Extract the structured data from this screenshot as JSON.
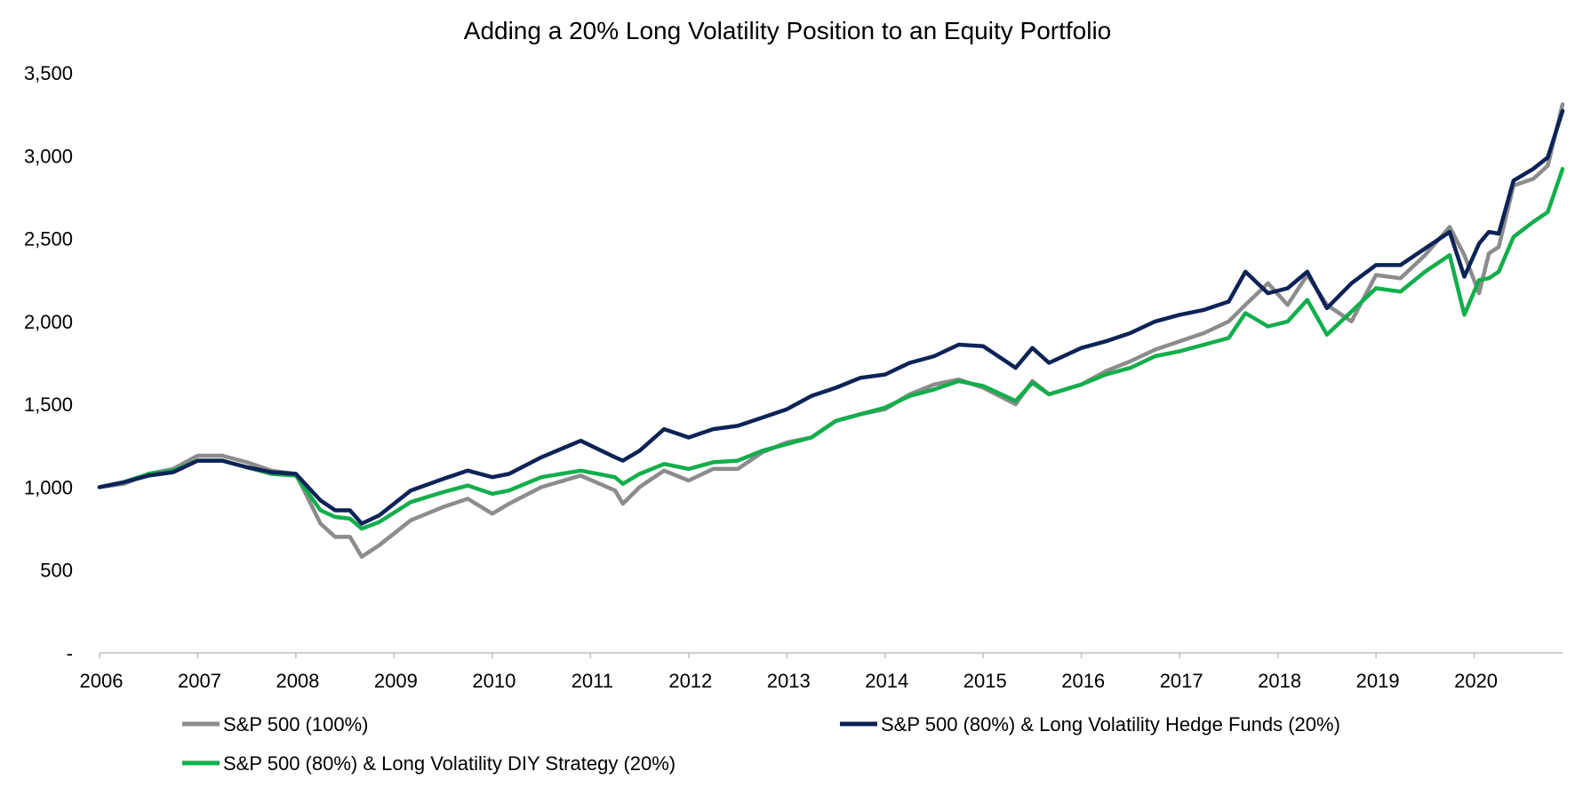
{
  "chart_data": {
    "type": "line",
    "title": "Adding a 20% Long Volatility Position to an Equity Portfolio",
    "xlabel": "",
    "ylabel": "",
    "xlim": [
      2006,
      2020.9
    ],
    "ylim": [
      0,
      3500
    ],
    "x_ticks": [
      "2006",
      "2007",
      "2008",
      "2009",
      "2010",
      "2011",
      "2012",
      "2013",
      "2014",
      "2015",
      "2016",
      "2017",
      "2018",
      "2019",
      "2020"
    ],
    "y_ticks": [
      {
        "value": 0,
        "label": "-"
      },
      {
        "value": 500,
        "label": "500"
      },
      {
        "value": 1000,
        "label": "1,000"
      },
      {
        "value": 1500,
        "label": "1,500"
      },
      {
        "value": 2000,
        "label": "2,000"
      },
      {
        "value": 2500,
        "label": "2,500"
      },
      {
        "value": 3000,
        "label": "3,000"
      },
      {
        "value": 3500,
        "label": "3,500"
      }
    ],
    "grid": false,
    "legend_position": "bottom",
    "series": [
      {
        "name": "S&P 500 (100%)",
        "color": "#8c8c8c",
        "x": [
          2006,
          2006.25,
          2006.5,
          2006.75,
          2007,
          2007.25,
          2007.5,
          2007.75,
          2008,
          2008.25,
          2008.4,
          2008.55,
          2008.67,
          2008.85,
          2009.17,
          2009.5,
          2009.75,
          2010,
          2010.17,
          2010.5,
          2010.9,
          2011.25,
          2011.33,
          2011.5,
          2011.75,
          2012,
          2012.25,
          2012.5,
          2012.75,
          2013,
          2013.25,
          2013.5,
          2013.75,
          2014,
          2014.25,
          2014.5,
          2014.75,
          2015,
          2015.33,
          2015.5,
          2015.67,
          2016,
          2016.25,
          2016.5,
          2016.75,
          2017,
          2017.25,
          2017.5,
          2017.67,
          2017.9,
          2018.1,
          2018.3,
          2018.5,
          2018.75,
          2019,
          2019.25,
          2019.5,
          2019.75,
          2019.9,
          2020.05,
          2020.15,
          2020.25,
          2020.4,
          2020.6,
          2020.75,
          2020.9
        ],
        "y": [
          1000,
          1020,
          1080,
          1110,
          1190,
          1190,
          1150,
          1100,
          1080,
          780,
          700,
          700,
          580,
          650,
          800,
          880,
          930,
          840,
          900,
          1000,
          1070,
          980,
          900,
          1000,
          1100,
          1040,
          1110,
          1110,
          1210,
          1270,
          1300,
          1400,
          1440,
          1470,
          1560,
          1620,
          1650,
          1600,
          1500,
          1640,
          1560,
          1620,
          1700,
          1760,
          1830,
          1880,
          1930,
          2000,
          2100,
          2230,
          2100,
          2280,
          2100,
          2000,
          2280,
          2260,
          2400,
          2570,
          2400,
          2170,
          2410,
          2450,
          2820,
          2860,
          2940,
          3310
        ]
      },
      {
        "name": "S&P 500 (80%) & Long Volatility Hedge Funds (20%)",
        "color": "#0d2357",
        "x": [
          2006,
          2006.25,
          2006.5,
          2006.75,
          2007,
          2007.25,
          2007.5,
          2007.75,
          2008,
          2008.25,
          2008.4,
          2008.55,
          2008.67,
          2008.85,
          2009.17,
          2009.5,
          2009.75,
          2010,
          2010.17,
          2010.5,
          2010.9,
          2011.25,
          2011.33,
          2011.5,
          2011.75,
          2012,
          2012.25,
          2012.5,
          2012.75,
          2013,
          2013.25,
          2013.5,
          2013.75,
          2014,
          2014.25,
          2014.5,
          2014.75,
          2015,
          2015.33,
          2015.5,
          2015.67,
          2016,
          2016.25,
          2016.5,
          2016.75,
          2017,
          2017.25,
          2017.5,
          2017.67,
          2017.9,
          2018.1,
          2018.3,
          2018.5,
          2018.75,
          2019,
          2019.25,
          2019.5,
          2019.75,
          2019.9,
          2020.05,
          2020.15,
          2020.25,
          2020.4,
          2020.6,
          2020.75,
          2020.9
        ],
        "y": [
          1000,
          1030,
          1070,
          1090,
          1160,
          1160,
          1120,
          1090,
          1080,
          920,
          860,
          860,
          780,
          830,
          980,
          1050,
          1100,
          1060,
          1080,
          1180,
          1280,
          1180,
          1160,
          1220,
          1350,
          1300,
          1350,
          1370,
          1420,
          1470,
          1550,
          1600,
          1660,
          1680,
          1750,
          1790,
          1860,
          1850,
          1720,
          1840,
          1750,
          1840,
          1880,
          1930,
          2000,
          2040,
          2070,
          2120,
          2300,
          2170,
          2200,
          2300,
          2080,
          2230,
          2340,
          2340,
          2440,
          2540,
          2270,
          2470,
          2540,
          2530,
          2850,
          2920,
          2990,
          3270
        ]
      },
      {
        "name": "S&P 500 (80%) & Long Volatility DIY Strategy (20%)",
        "color": "#12ae4b",
        "x": [
          2006,
          2006.25,
          2006.5,
          2006.75,
          2007,
          2007.25,
          2007.5,
          2007.75,
          2008,
          2008.25,
          2008.4,
          2008.55,
          2008.67,
          2008.85,
          2009.17,
          2009.5,
          2009.75,
          2010,
          2010.17,
          2010.5,
          2010.9,
          2011.25,
          2011.33,
          2011.5,
          2011.75,
          2012,
          2012.25,
          2012.5,
          2012.75,
          2013,
          2013.25,
          2013.5,
          2013.75,
          2014,
          2014.25,
          2014.5,
          2014.75,
          2015,
          2015.33,
          2015.5,
          2015.67,
          2016,
          2016.25,
          2016.5,
          2016.75,
          2017,
          2017.25,
          2017.5,
          2017.67,
          2017.9,
          2018.1,
          2018.3,
          2018.5,
          2018.75,
          2019,
          2019.25,
          2019.5,
          2019.75,
          2019.9,
          2020.05,
          2020.15,
          2020.25,
          2020.4,
          2020.6,
          2020.75,
          2020.9
        ],
        "y": [
          1000,
          1030,
          1080,
          1100,
          1160,
          1160,
          1120,
          1080,
          1070,
          860,
          820,
          810,
          750,
          790,
          910,
          970,
          1010,
          960,
          980,
          1060,
          1100,
          1060,
          1020,
          1080,
          1140,
          1110,
          1150,
          1160,
          1220,
          1260,
          1300,
          1400,
          1440,
          1480,
          1550,
          1590,
          1640,
          1610,
          1520,
          1630,
          1560,
          1620,
          1680,
          1720,
          1790,
          1820,
          1860,
          1900,
          2050,
          1970,
          2000,
          2130,
          1920,
          2060,
          2200,
          2180,
          2300,
          2400,
          2040,
          2250,
          2260,
          2300,
          2510,
          2600,
          2660,
          2920
        ]
      }
    ]
  }
}
